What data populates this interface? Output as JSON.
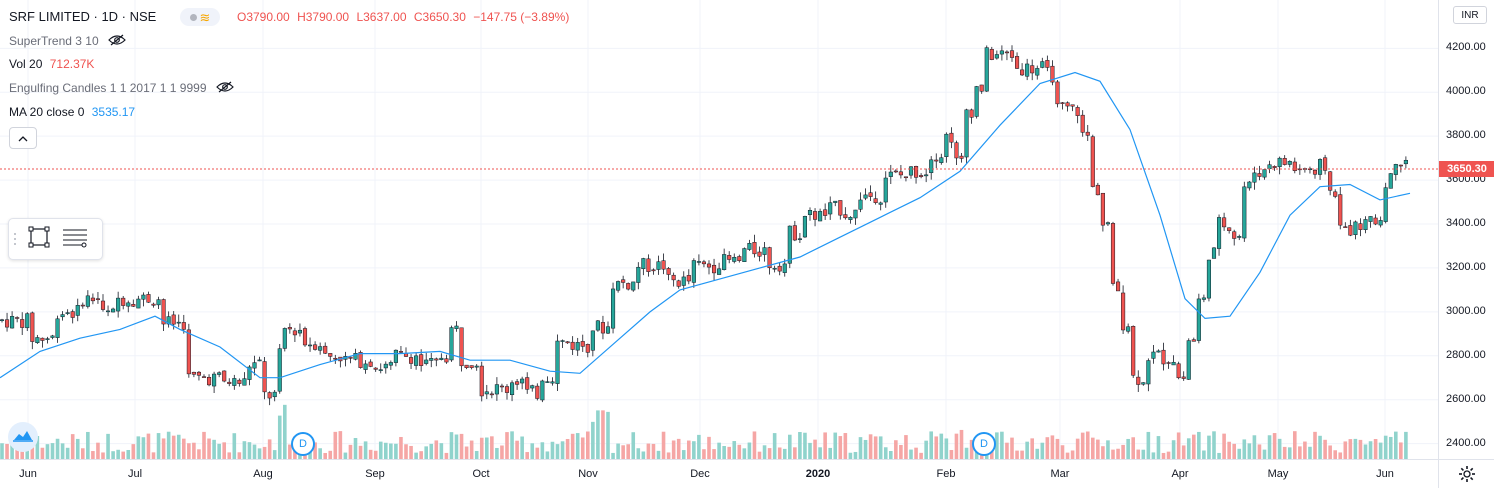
{
  "legend": {
    "title": "SRF LIMITED · 1D · NSE",
    "open": "O3790.00",
    "high": "H3790.00",
    "low": "L3637.00",
    "close": "C3650.30",
    "change": "−147.75 (−3.89%)",
    "indicators": [
      {
        "label": "SuperTrend 3 10",
        "value": "",
        "hidden": true
      },
      {
        "label": "Vol 20",
        "value": "712.37K",
        "value_color": "#ef5350"
      },
      {
        "label": "Engulfing Candles 1 1 2017 1 1 9999",
        "value": "",
        "hidden": true
      },
      {
        "label": "MA 20 close 0",
        "value": "3535.17",
        "value_color": "#2196f3"
      }
    ]
  },
  "price_axis": {
    "currency": "INR",
    "last_price_label": "3650.30",
    "ticks": [
      "4200.00",
      "4000.00",
      "3800.00",
      "3600.00",
      "3400.00",
      "3200.00",
      "3000.00",
      "2800.00",
      "2600.00",
      "2400.00"
    ]
  },
  "time_axis": {
    "labels": [
      {
        "text": "Jun",
        "bold": false
      },
      {
        "text": "Jul",
        "bold": false
      },
      {
        "text": "Aug",
        "bold": false
      },
      {
        "text": "Sep",
        "bold": false
      },
      {
        "text": "Oct",
        "bold": false
      },
      {
        "text": "Nov",
        "bold": false
      },
      {
        "text": "Dec",
        "bold": false
      },
      {
        "text": "2020",
        "bold": true
      },
      {
        "text": "Feb",
        "bold": false
      },
      {
        "text": "Mar",
        "bold": false
      },
      {
        "text": "Apr",
        "bold": false
      },
      {
        "text": "May",
        "bold": false
      },
      {
        "text": "Jun",
        "bold": false
      }
    ]
  },
  "dividend_markers": [
    "D",
    "D"
  ],
  "toolbar": {
    "tools": [
      "rectangle-tool",
      "lines-tool"
    ]
  },
  "colors": {
    "up": "#26a69a",
    "down": "#ef5350",
    "ma": "#2196f3",
    "grid": "#f0f3fa",
    "vol_up": "#90d3cc",
    "vol_down": "#f5a6a5"
  },
  "chart_data": {
    "type": "candlestick",
    "title": "SRF LIMITED · 1D · NSE",
    "y_range": [
      2330,
      4420
    ],
    "series_ma_name": "MA 20 close 0",
    "ma_points": [
      [
        0,
        2700
      ],
      [
        40,
        2820
      ],
      [
        80,
        2880
      ],
      [
        120,
        2920
      ],
      [
        155,
        2980
      ],
      [
        180,
        2920
      ],
      [
        220,
        2840
      ],
      [
        260,
        2700
      ],
      [
        280,
        2700
      ],
      [
        320,
        2760
      ],
      [
        360,
        2810
      ],
      [
        400,
        2810
      ],
      [
        440,
        2820
      ],
      [
        470,
        2780
      ],
      [
        510,
        2780
      ],
      [
        550,
        2730
      ],
      [
        580,
        2720
      ],
      [
        620,
        2880
      ],
      [
        650,
        3000
      ],
      [
        680,
        3100
      ],
      [
        720,
        3150
      ],
      [
        760,
        3200
      ],
      [
        800,
        3250
      ],
      [
        840,
        3340
      ],
      [
        880,
        3430
      ],
      [
        920,
        3520
      ],
      [
        960,
        3640
      ],
      [
        1000,
        3850
      ],
      [
        1040,
        4040
      ],
      [
        1075,
        4090
      ],
      [
        1100,
        4050
      ],
      [
        1130,
        3830
      ],
      [
        1160,
        3440
      ],
      [
        1185,
        3060
      ],
      [
        1205,
        2970
      ],
      [
        1230,
        2980
      ],
      [
        1260,
        3180
      ],
      [
        1290,
        3440
      ],
      [
        1320,
        3570
      ],
      [
        1350,
        3580
      ],
      [
        1380,
        3510
      ],
      [
        1410,
        3540
      ]
    ],
    "candle_segments": [
      [
        0,
        2960,
        30
      ],
      [
        30,
        2880,
        22
      ],
      [
        55,
        3000,
        24
      ],
      [
        80,
        3060,
        20
      ],
      [
        100,
        2990,
        20
      ],
      [
        115,
        3060,
        16
      ],
      [
        135,
        3060,
        12
      ],
      [
        150,
        3060,
        12
      ],
      [
        160,
        2950,
        24
      ],
      [
        185,
        2700,
        34
      ],
      [
        220,
        2680,
        20
      ],
      [
        245,
        2760,
        14
      ],
      [
        262,
        2620,
        12
      ],
      [
        275,
        2800,
        12
      ],
      [
        283,
        2920,
        16
      ],
      [
        305,
        2860,
        20
      ],
      [
        325,
        2800,
        16
      ],
      [
        345,
        2780,
        24
      ],
      [
        375,
        2750,
        20
      ],
      [
        395,
        2800,
        24
      ],
      [
        420,
        2760,
        20
      ],
      [
        440,
        2800,
        12
      ],
      [
        448,
        2920,
        12
      ],
      [
        460,
        2780,
        20
      ],
      [
        480,
        2650,
        30
      ],
      [
        510,
        2690,
        16
      ],
      [
        525,
        2630,
        12
      ],
      [
        540,
        2710,
        16
      ],
      [
        555,
        2860,
        16
      ],
      [
        570,
        2850,
        20
      ],
      [
        592,
        2930,
        20
      ],
      [
        610,
        3130,
        20
      ],
      [
        635,
        3210,
        24
      ],
      [
        665,
        3140,
        20
      ],
      [
        690,
        3210,
        24
      ],
      [
        715,
        3230,
        24
      ],
      [
        740,
        3280,
        24
      ],
      [
        765,
        3220,
        20
      ],
      [
        785,
        3360,
        16
      ],
      [
        800,
        3440,
        24
      ],
      [
        830,
        3470,
        16
      ],
      [
        845,
        3450,
        12
      ],
      [
        860,
        3530,
        24
      ],
      [
        885,
        3620,
        24
      ],
      [
        910,
        3640,
        24
      ],
      [
        930,
        3720,
        16
      ],
      [
        945,
        3800,
        16
      ],
      [
        955,
        3680,
        12
      ],
      [
        965,
        3920,
        12
      ],
      [
        975,
        4020,
        12
      ],
      [
        985,
        4170,
        30
      ],
      [
        1015,
        4110,
        16
      ],
      [
        1030,
        4110,
        16
      ],
      [
        1045,
        4080,
        12
      ],
      [
        1055,
        3920,
        16
      ],
      [
        1070,
        3920,
        16
      ],
      [
        1080,
        3800,
        10
      ],
      [
        1090,
        3560,
        10
      ],
      [
        1100,
        3400,
        12
      ],
      [
        1110,
        3100,
        12
      ],
      [
        1120,
        2950,
        12
      ],
      [
        1130,
        2700,
        16
      ],
      [
        1145,
        2800,
        16
      ],
      [
        1160,
        2790,
        16
      ],
      [
        1175,
        2700,
        12
      ],
      [
        1185,
        2870,
        12
      ],
      [
        1195,
        3050,
        10
      ],
      [
        1205,
        3270,
        12
      ],
      [
        1215,
        3400,
        16
      ],
      [
        1230,
        3350,
        12
      ],
      [
        1240,
        3570,
        12
      ],
      [
        1250,
        3640,
        16
      ],
      [
        1265,
        3680,
        24
      ],
      [
        1290,
        3650,
        20
      ],
      [
        1310,
        3600,
        12
      ],
      [
        1320,
        3660,
        12
      ],
      [
        1330,
        3550,
        12
      ],
      [
        1340,
        3380,
        20
      ],
      [
        1360,
        3400,
        16
      ],
      [
        1375,
        3420,
        10
      ],
      [
        1385,
        3600,
        12
      ],
      [
        1395,
        3700,
        16
      ]
    ]
  }
}
